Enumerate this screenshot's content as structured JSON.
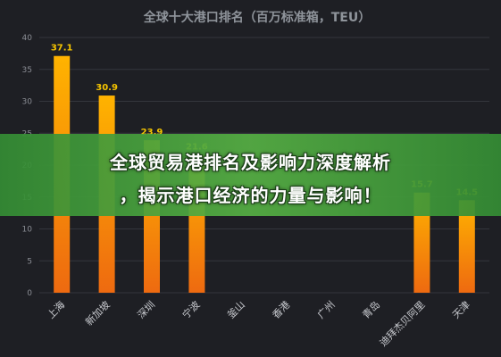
{
  "chart_data": {
    "type": "bar",
    "title": "全球十大港口排名（百万标准箱，TEU）",
    "categories": [
      "上海",
      "新加坡",
      "深圳",
      "宁波",
      "釜山",
      "香港",
      "广州",
      "青岛",
      "迪拜杰贝阿里",
      "天津"
    ],
    "values": [
      37.1,
      30.9,
      23.9,
      21.6,
      null,
      null,
      null,
      null,
      15.7,
      14.5
    ],
    "data_labels": [
      "37.1",
      "30.9",
      "23.9",
      "21.6",
      "",
      "",
      "",
      "",
      "15.7",
      "14.5"
    ],
    "yticks": [
      "0",
      "5",
      "10",
      "15",
      "20",
      "25",
      "30",
      "35",
      "40"
    ],
    "ylim": [
      0,
      40
    ],
    "grid": true,
    "colors": {
      "bar_top": "#ffb300",
      "bar_bottom": "#ee6a10",
      "label": "#f5c400"
    }
  },
  "overlay": {
    "line1": "全球贸易港排名及影响力深度解析",
    "line2": "，揭示港口经济的力量与影响！"
  }
}
